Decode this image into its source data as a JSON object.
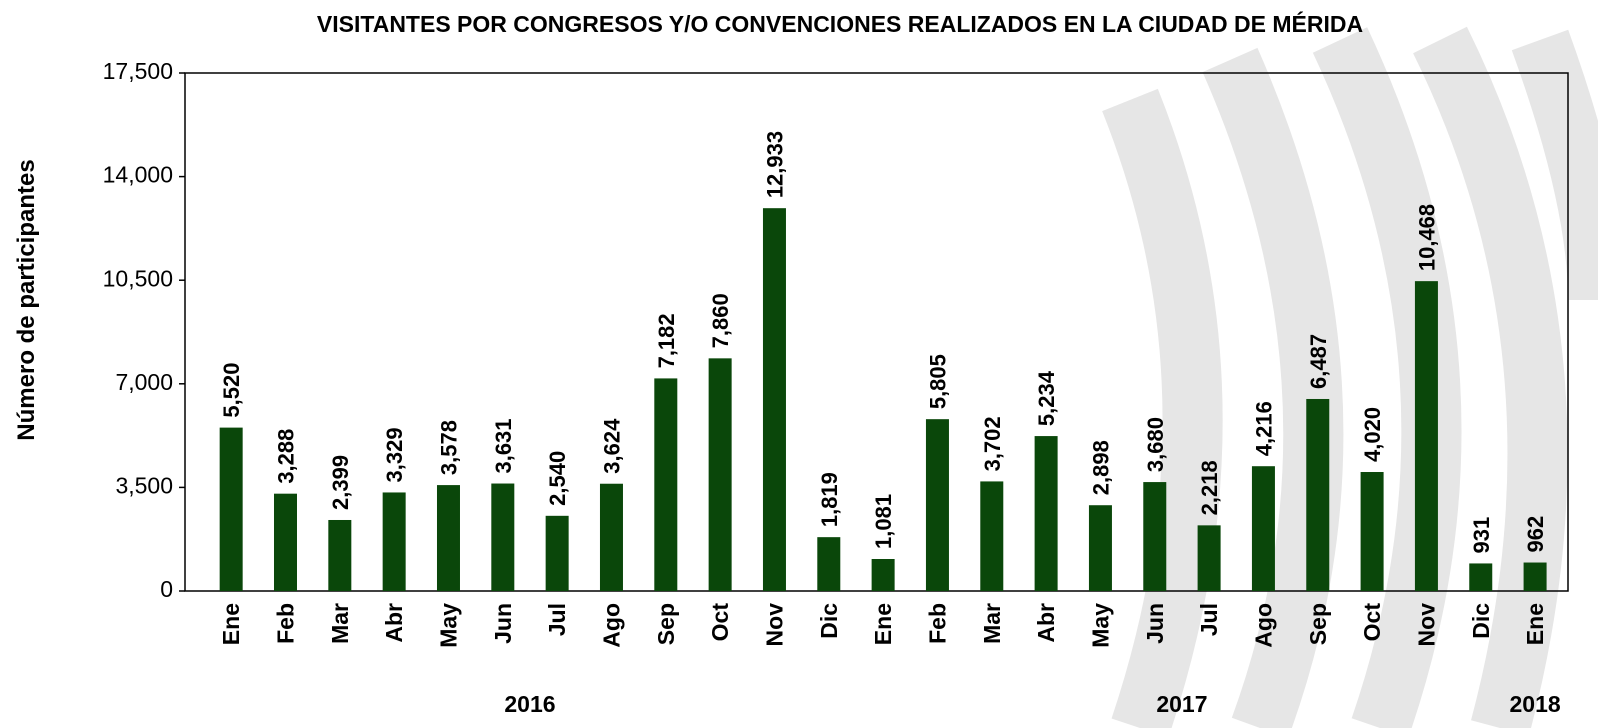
{
  "chart_data": {
    "type": "bar",
    "title": "VISITANTES POR CONGRESOS Y/O CONVENCIONES REALIZADOS EN LA CIUDAD DE MÉRIDA",
    "y_label": "Número de participantes",
    "categories": [
      "Ene",
      "Feb",
      "Mar",
      "Abr",
      "May",
      "Jun",
      "Jul",
      "Ago",
      "Sep",
      "Oct",
      "Nov",
      "Dic",
      "Ene",
      "Feb",
      "Mar",
      "Abr",
      "May",
      "Jun",
      "Jul",
      "Ago",
      "Sep",
      "Oct",
      "Nov",
      "Dic",
      "Ene"
    ],
    "year_labels": [
      "2016",
      "2017",
      "2018"
    ],
    "values": [
      5520,
      3288,
      2399,
      3329,
      3578,
      3631,
      2540,
      3624,
      7182,
      7860,
      12933,
      1819,
      1081,
      5805,
      3702,
      5234,
      2898,
      3680,
      2218,
      4216,
      6487,
      4020,
      10468,
      931,
      962
    ],
    "value_labels": [
      "5,520",
      "3,288",
      "2,399",
      "3,329",
      "3,578",
      "3,631",
      "2,540",
      "3,624",
      "7,182",
      "7,860",
      "12,933",
      "1,819",
      "1,081",
      "5,805",
      "3,702",
      "5,234",
      "2,898",
      "3,680",
      "2,218",
      "4,216",
      "6,487",
      "4,020",
      "10,468",
      "931",
      "962"
    ],
    "color": "#0a470a",
    "ylim": [
      0,
      17500
    ],
    "yticks": [
      0,
      {
        "value": 3500,
        "label": "3,500"
      },
      {
        "value": 7000,
        "label": "7,000"
      },
      {
        "value": 10500,
        "label": "10,500"
      },
      {
        "value": 14000,
        "label": "14,000"
      },
      {
        "value": 17500,
        "label": "17,500"
      }
    ]
  }
}
